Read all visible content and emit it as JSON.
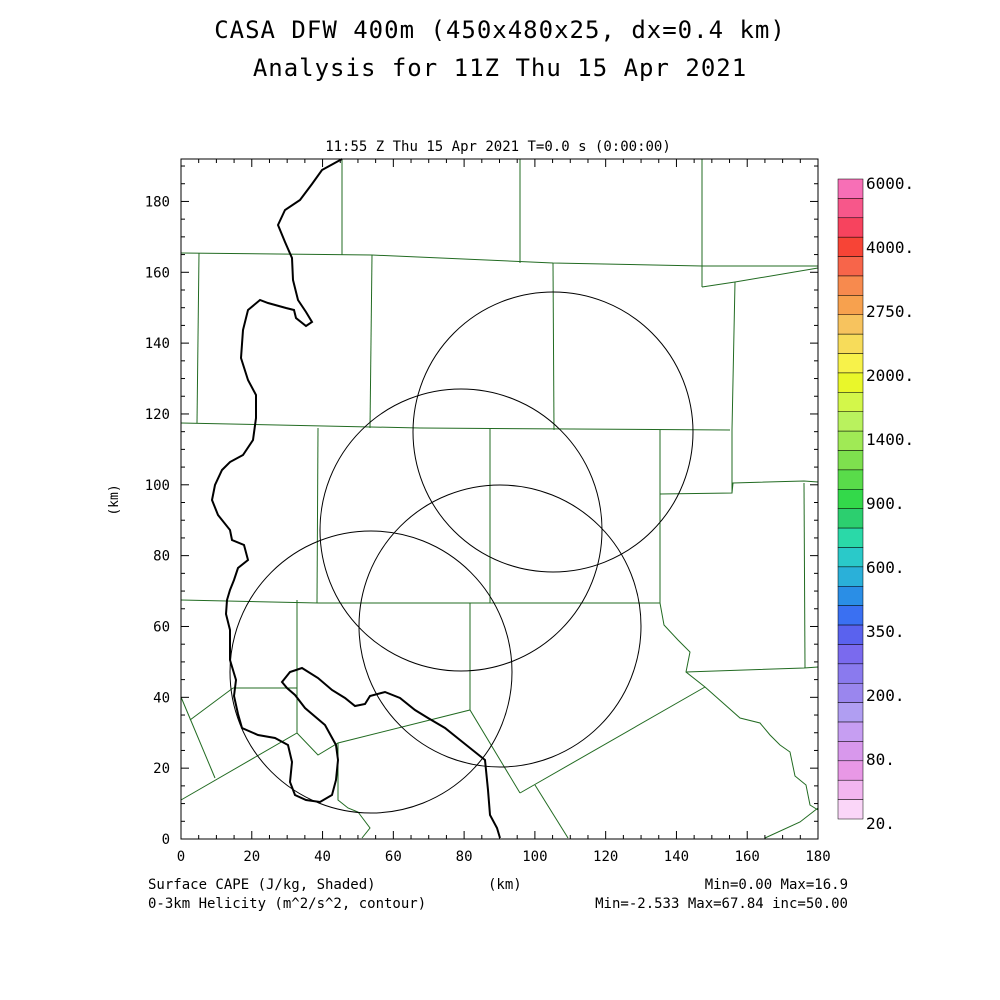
{
  "header": {
    "title_line1": "CASA DFW 400m (450x480x25, dx=0.4 km)",
    "title_line2": "Analysis for 11Z Thu 15 Apr 2021",
    "plot_time": "11:55 Z Thu 15 Apr 2021   T=0.0 s (0:00:00)"
  },
  "axes": {
    "x_label": "(km)",
    "y_label": "(km)",
    "x_ticks": [
      "0",
      "20",
      "40",
      "60",
      "80",
      "100",
      "120",
      "140",
      "160",
      "180"
    ],
    "y_ticks": [
      "0",
      "20",
      "40",
      "60",
      "80",
      "100",
      "120",
      "140",
      "160",
      "180"
    ]
  },
  "colorbar": {
    "labels": [
      "6000.",
      "4000.",
      "2750.",
      "2000.",
      "1400.",
      "900.",
      "600.",
      "350.",
      "200.",
      "80.",
      "20."
    ],
    "colors": [
      "#f76fb6",
      "#f7578a",
      "#f7435e",
      "#f74436",
      "#f7654a",
      "#f78a4e",
      "#f7a14e",
      "#f7c35e",
      "#f7dc5a",
      "#f7f24a",
      "#e9f72a",
      "#d3f74a",
      "#b9f25e",
      "#a0ea55",
      "#7ee04e",
      "#59dc4a",
      "#33d94a",
      "#2ccf6f",
      "#2ad9a8",
      "#2ac9c9",
      "#2ab0d9",
      "#2a8ee6",
      "#3a70f2",
      "#5a62ee",
      "#7a6aee",
      "#8a7aee",
      "#9a86ee",
      "#b09ef2",
      "#c69ef2",
      "#d898ec",
      "#e898e6",
      "#f2b6f0",
      "#fad6f8"
    ]
  },
  "footer": {
    "left_line1": "Surface CAPE (J/kg, Shaded)",
    "left_line2": "0-3km Helicity (m^2/s^2, contour)",
    "center": "(km)",
    "right_line1": "Min=0.00 Max=16.9",
    "right_line2": "Min=-2.533 Max=67.84 inc=50.00"
  },
  "map_data": {
    "domain_km": {
      "x": [
        0,
        180
      ],
      "y": [
        0,
        192
      ]
    },
    "radar_coverage_rings_km": [
      {
        "cx": 106,
        "cy": 116,
        "r": 39
      },
      {
        "cx": 80,
        "cy": 88,
        "r": 39
      },
      {
        "cx": 93,
        "cy": 62,
        "r": 39
      },
      {
        "cx": 54,
        "cy": 47,
        "r": 40
      }
    ],
    "colors": {
      "county_lines": "#226b22",
      "river": "#000000",
      "rings": "#000000"
    }
  }
}
